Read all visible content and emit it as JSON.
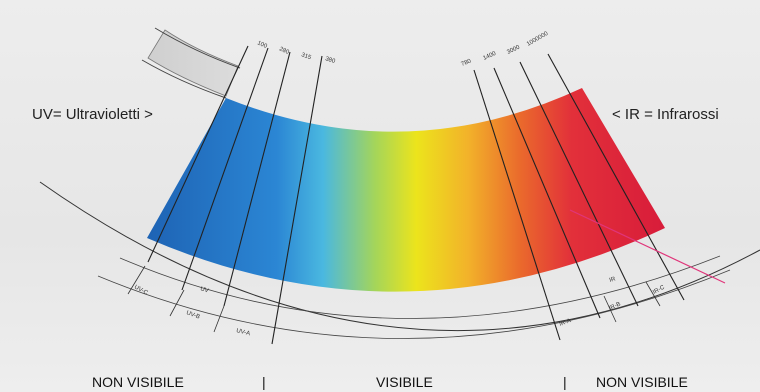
{
  "labels": {
    "uv": "UV= Ultravioletti >",
    "ir": "< IR = Infrarossi",
    "non_visible_left": "NON VISIBILE",
    "separator_left": "|",
    "visible": "VISIBILE",
    "separator_right": "|",
    "non_visible_right": "NON VISIBILE"
  },
  "wavelengths_uv": [
    "100",
    "280",
    "315",
    "380"
  ],
  "wavelengths_ir": [
    "780",
    "1400",
    "3000",
    "1000000"
  ],
  "bands": {
    "uvc": "UV-C",
    "uvb": "UV-B",
    "uva": "UV-A",
    "uv": "UV",
    "ir": "IR",
    "ira": "IR-A",
    "irb": "IR-B",
    "irc": "IR-C"
  },
  "colors": {
    "spectrum": [
      "#1e66b8",
      "#2a88d6",
      "#3fb6e4",
      "#8fd26a",
      "#e6e21c",
      "#f2b226",
      "#ea6a2c",
      "#e2303a",
      "#d81f3a"
    ],
    "pointer_line": "#e0357a",
    "arc_line": "#333333",
    "background": "#e9e9e9"
  }
}
